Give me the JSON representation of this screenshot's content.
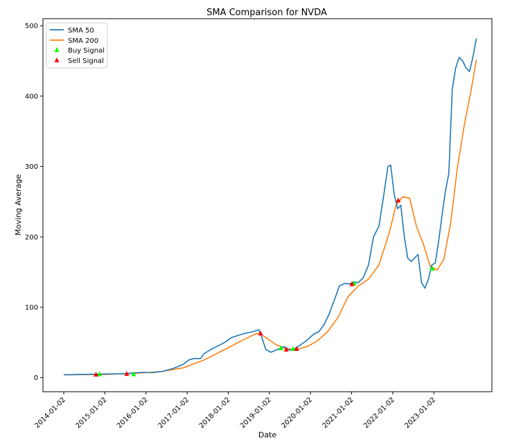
{
  "chart_data": {
    "type": "line",
    "title": "SMA Comparison for NVDA",
    "xlabel": "Date",
    "ylabel": "Moving Average",
    "xlim": [
      "2013-07-01",
      "2024-06-01"
    ],
    "ylim": [
      -20,
      510
    ],
    "x_ticks": [
      "2014-01-02",
      "2015-01-02",
      "2016-01-02",
      "2017-01-02",
      "2018-01-02",
      "2019-01-02",
      "2020-01-02",
      "2021-01-02",
      "2022-01-02",
      "2023-01-02"
    ],
    "y_ticks": [
      0,
      100,
      200,
      300,
      400,
      500
    ],
    "grid": false,
    "legend": "top-left",
    "series": [
      {
        "name": "SMA 50",
        "color": "#1f77b4",
        "points": [
          [
            "2014-01-02",
            4
          ],
          [
            "2014-06-01",
            4.5
          ],
          [
            "2014-12-01",
            5
          ],
          [
            "2015-06-01",
            5.5
          ],
          [
            "2015-12-01",
            7.5
          ],
          [
            "2016-03-01",
            7
          ],
          [
            "2016-06-01",
            9
          ],
          [
            "2016-09-01",
            13
          ],
          [
            "2016-12-01",
            19
          ],
          [
            "2017-01-15",
            25
          ],
          [
            "2017-03-01",
            27
          ],
          [
            "2017-05-01",
            27
          ],
          [
            "2017-06-01",
            34
          ],
          [
            "2017-08-01",
            40
          ],
          [
            "2017-10-01",
            45
          ],
          [
            "2017-12-01",
            50
          ],
          [
            "2018-02-01",
            57
          ],
          [
            "2018-04-01",
            60
          ],
          [
            "2018-06-01",
            63
          ],
          [
            "2018-08-01",
            65
          ],
          [
            "2018-10-01",
            68
          ],
          [
            "2018-11-01",
            55
          ],
          [
            "2018-12-01",
            40
          ],
          [
            "2019-01-15",
            36
          ],
          [
            "2019-03-01",
            39
          ],
          [
            "2019-04-15",
            42
          ],
          [
            "2019-05-15",
            44
          ],
          [
            "2019-07-01",
            39
          ],
          [
            "2019-08-15",
            41
          ],
          [
            "2019-10-01",
            46
          ],
          [
            "2019-12-01",
            53
          ],
          [
            "2020-02-01",
            62
          ],
          [
            "2020-03-15",
            65
          ],
          [
            "2020-05-01",
            75
          ],
          [
            "2020-06-15",
            90
          ],
          [
            "2020-08-01",
            110
          ],
          [
            "2020-09-15",
            130
          ],
          [
            "2020-11-01",
            134
          ],
          [
            "2020-12-15",
            133
          ],
          [
            "2021-01-15",
            136
          ],
          [
            "2021-03-01",
            135
          ],
          [
            "2021-04-15",
            142
          ],
          [
            "2021-06-01",
            160
          ],
          [
            "2021-07-15",
            200
          ],
          [
            "2021-09-01",
            215
          ],
          [
            "2021-10-15",
            260
          ],
          [
            "2021-11-20",
            300
          ],
          [
            "2021-12-15",
            302
          ],
          [
            "2022-01-15",
            260
          ],
          [
            "2022-02-15",
            240
          ],
          [
            "2022-03-15",
            245
          ],
          [
            "2022-04-15",
            200
          ],
          [
            "2022-05-15",
            170
          ],
          [
            "2022-06-15",
            165
          ],
          [
            "2022-07-15",
            170
          ],
          [
            "2022-08-15",
            175
          ],
          [
            "2022-09-15",
            135
          ],
          [
            "2022-10-15",
            127
          ],
          [
            "2022-11-15",
            140
          ],
          [
            "2022-12-15",
            160
          ],
          [
            "2023-01-15",
            163
          ],
          [
            "2023-02-15",
            195
          ],
          [
            "2023-03-15",
            230
          ],
          [
            "2023-04-15",
            265
          ],
          [
            "2023-05-15",
            290
          ],
          [
            "2023-06-15",
            410
          ],
          [
            "2023-07-15",
            440
          ],
          [
            "2023-08-15",
            455
          ],
          [
            "2023-09-15",
            450
          ],
          [
            "2023-10-15",
            440
          ],
          [
            "2023-11-15",
            435
          ],
          [
            "2023-12-15",
            455
          ],
          [
            "2024-01-15",
            482
          ]
        ]
      },
      {
        "name": "SMA 200",
        "color": "#ff7f0e",
        "points": [
          [
            "2014-01-02",
            4
          ],
          [
            "2015-01-02",
            4.5
          ],
          [
            "2015-09-01",
            6
          ],
          [
            "2016-01-02",
            7
          ],
          [
            "2016-06-01",
            9
          ],
          [
            "2016-12-01",
            14
          ],
          [
            "2017-06-01",
            25
          ],
          [
            "2017-12-01",
            40
          ],
          [
            "2018-06-01",
            55
          ],
          [
            "2018-09-01",
            62
          ],
          [
            "2018-10-01",
            63
          ],
          [
            "2018-12-01",
            57
          ],
          [
            "2019-03-01",
            47
          ],
          [
            "2019-06-01",
            41
          ],
          [
            "2019-09-01",
            40
          ],
          [
            "2019-12-01",
            44
          ],
          [
            "2020-03-01",
            52
          ],
          [
            "2020-06-01",
            65
          ],
          [
            "2020-09-01",
            85
          ],
          [
            "2020-12-01",
            115
          ],
          [
            "2021-03-01",
            130
          ],
          [
            "2021-06-01",
            140
          ],
          [
            "2021-09-01",
            160
          ],
          [
            "2021-12-01",
            205
          ],
          [
            "2022-02-01",
            245
          ],
          [
            "2022-04-01",
            257
          ],
          [
            "2022-06-01",
            255
          ],
          [
            "2022-08-01",
            215
          ],
          [
            "2022-10-01",
            190
          ],
          [
            "2022-12-01",
            158
          ],
          [
            "2023-02-01",
            153
          ],
          [
            "2023-04-01",
            168
          ],
          [
            "2023-06-01",
            220
          ],
          [
            "2023-08-01",
            300
          ],
          [
            "2023-10-01",
            360
          ],
          [
            "2023-12-01",
            410
          ],
          [
            "2024-01-15",
            452
          ]
        ]
      }
    ],
    "buy_signal": {
      "name": "Buy Signal",
      "color": "#00ff00",
      "points": [
        [
          "2014-11-15",
          5
        ],
        [
          "2015-09-15",
          5
        ],
        [
          "2019-04-15",
          42
        ],
        [
          "2019-08-01",
          41
        ],
        [
          "2021-01-25",
          134
        ],
        [
          "2022-12-20",
          155
        ]
      ]
    },
    "sell_signal": {
      "name": "Sell Signal",
      "color": "#ff0000",
      "points": [
        [
          "2014-10-15",
          4.5
        ],
        [
          "2015-07-15",
          5.5
        ],
        [
          "2018-10-15",
          63
        ],
        [
          "2019-06-01",
          40
        ],
        [
          "2019-09-01",
          41
        ],
        [
          "2021-01-05",
          133
        ],
        [
          "2022-02-20",
          252
        ]
      ]
    }
  }
}
